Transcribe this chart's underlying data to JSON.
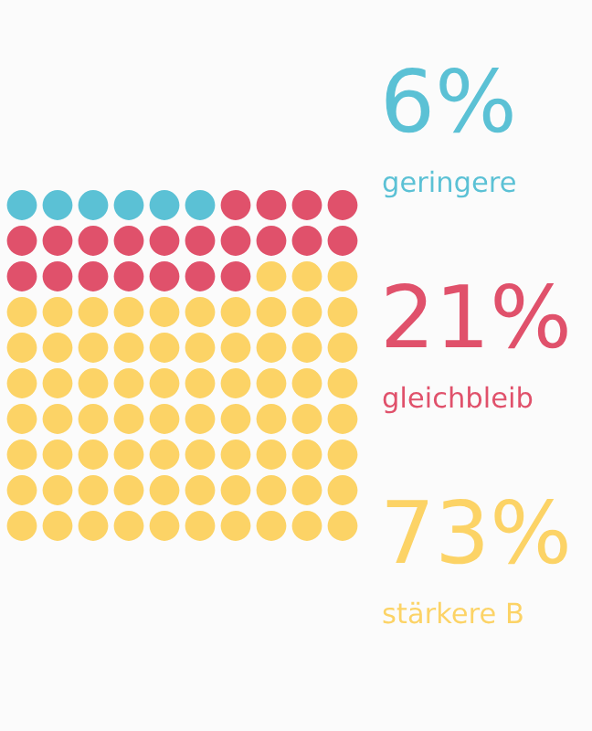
{
  "chart_data": {
    "type": "other",
    "categories": [
      "geringere",
      "gleichbleib",
      "stärkere B"
    ],
    "values": [
      6,
      21,
      73
    ],
    "value_labels": [
      "6%",
      "21%",
      "73%"
    ],
    "colors": [
      "#5bc1d5",
      "#e0516b",
      "#fcd366"
    ]
  }
}
